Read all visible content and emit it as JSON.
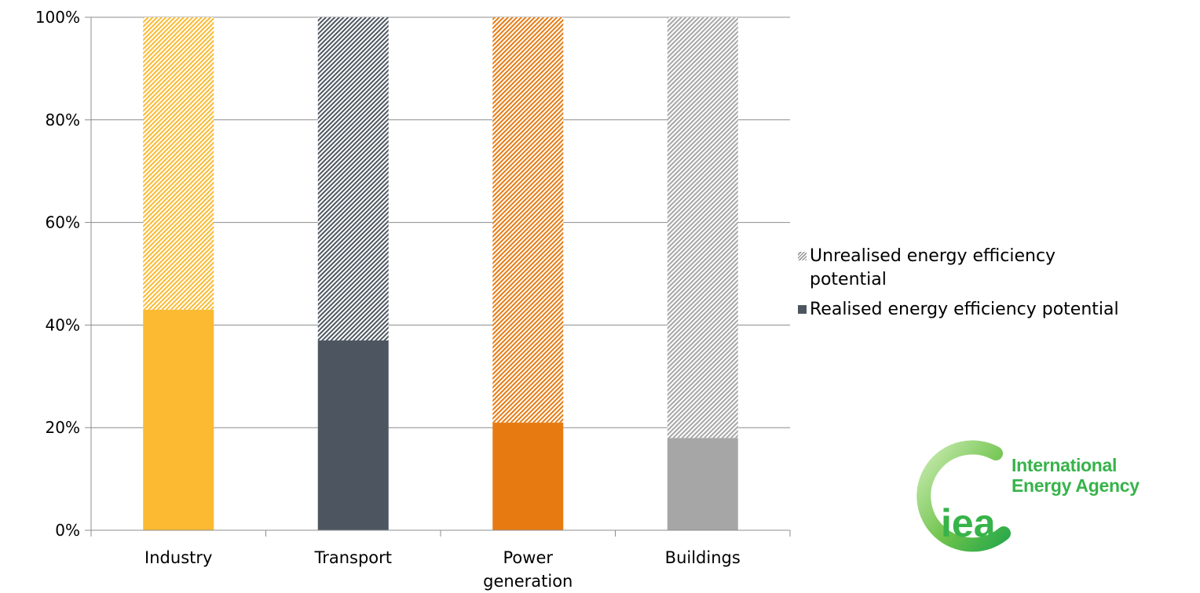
{
  "chart_data": {
    "type": "bar",
    "stacked": true,
    "categories": [
      "Industry",
      "Transport",
      "Power\ngeneration",
      "Buildings"
    ],
    "series": [
      {
        "name": "Realised energy efficiency potential",
        "values": [
          43,
          37,
          21,
          18
        ]
      },
      {
        "name": "Unrealised energy efficiency potential",
        "values": [
          57,
          63,
          79,
          82
        ]
      }
    ],
    "bar_colors": [
      "#fbba31",
      "#4d5660",
      "#e77b12",
      "#a6a6a6"
    ],
    "y_ticks": [
      "0%",
      "20%",
      "40%",
      "60%",
      "80%",
      "100%"
    ],
    "ylim": [
      0,
      100
    ],
    "grid": true,
    "legend_position": "right"
  },
  "legend": {
    "unrealised_label": "Unrealised energy efficiency potential",
    "realised_label": "Realised energy efficiency potential"
  },
  "logo": {
    "name_line1": "International",
    "name_line2": "Energy Agency",
    "mark_text": "iea",
    "color": "#37b34a"
  }
}
